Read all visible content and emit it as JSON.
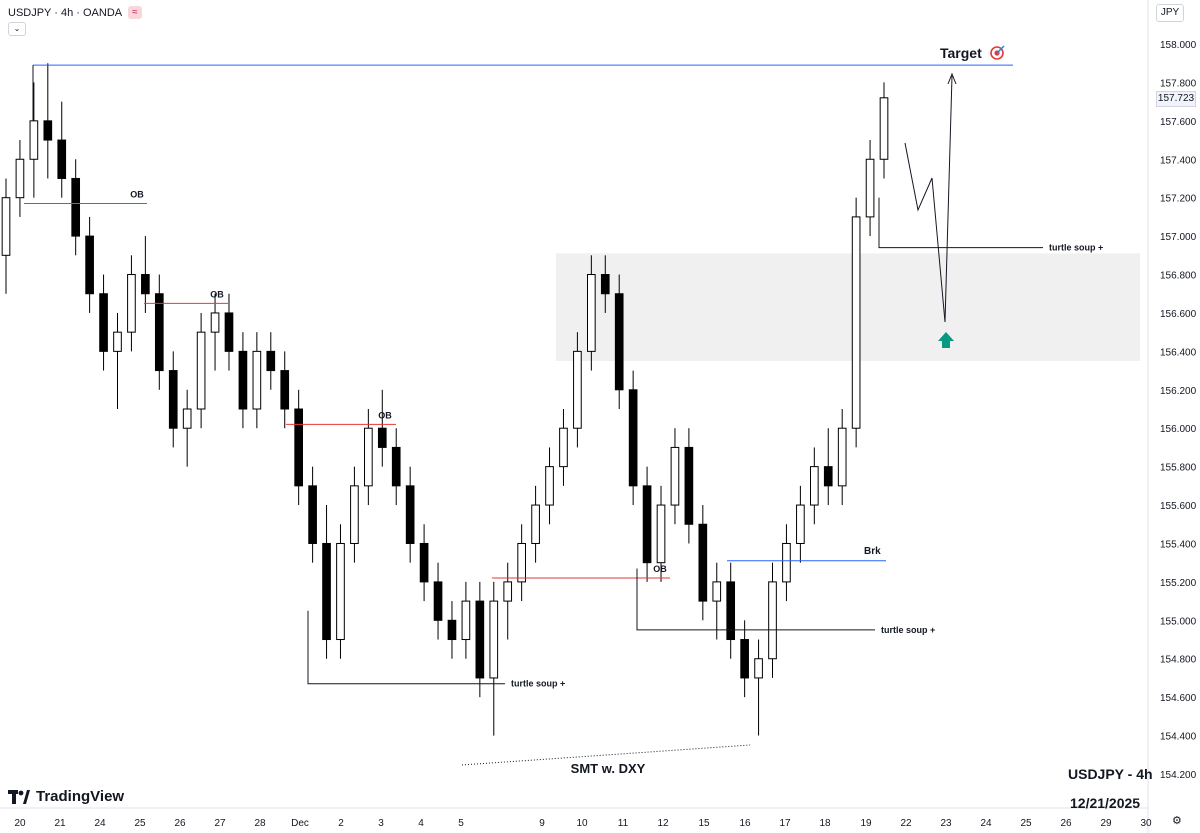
{
  "header": {
    "title": "USDJPY · 4h · OANDA",
    "indicator_icon": "indicator-toggle-icon",
    "badge": "≈"
  },
  "currency_button": "JPY",
  "last_price": "157.723",
  "branding": {
    "logo_text": "TradingView"
  },
  "footer": {
    "symbol": "USDJPY - 4h",
    "date": "12/21/2025"
  },
  "colors": {
    "bull_body": "#ffffff",
    "bear_body": "#000000",
    "ob_line": "#e53935",
    "target_line": "#2962ff",
    "brk_line": "#2962ff",
    "zone": "#f0f0f0",
    "arrow": "#089981"
  },
  "chart_data": {
    "type": "candlestick",
    "timeframe": "4h",
    "y_axis": {
      "ticks": [
        "158.000",
        "157.800",
        "157.600",
        "157.400",
        "157.200",
        "157.000",
        "156.800",
        "156.600",
        "156.400",
        "156.200",
        "156.000",
        "155.800",
        "155.600",
        "155.400",
        "155.200",
        "155.000",
        "154.800",
        "154.600",
        "154.400",
        "154.200"
      ],
      "range": [
        154.2,
        158.0
      ]
    },
    "x_axis": {
      "ticks": [
        "20",
        "21",
        "24",
        "25",
        "26",
        "27",
        "28",
        "Dec",
        "2",
        "3",
        "4",
        "5",
        "9",
        "10",
        "11",
        "12",
        "15",
        "16",
        "17",
        "18",
        "19",
        "22",
        "23",
        "24",
        "25",
        "26",
        "29",
        "30"
      ]
    },
    "series": [
      {
        "values": [
          [
            156.9,
            157.3,
            156.7,
            157.2
          ],
          [
            157.2,
            157.5,
            157.1,
            157.4
          ],
          [
            157.4,
            157.8,
            157.2,
            157.6
          ],
          [
            157.6,
            157.9,
            157.3,
            157.5
          ],
          [
            157.5,
            157.7,
            157.2,
            157.3
          ],
          [
            157.3,
            157.4,
            156.9,
            157.0
          ],
          [
            157.0,
            157.1,
            156.6,
            156.7
          ],
          [
            156.7,
            156.8,
            156.3,
            156.4
          ],
          [
            156.4,
            156.6,
            156.1,
            156.5
          ],
          [
            156.5,
            156.9,
            156.4,
            156.8
          ],
          [
            156.8,
            157.0,
            156.6,
            156.7
          ],
          [
            156.7,
            156.8,
            156.2,
            156.3
          ],
          [
            156.3,
            156.4,
            155.9,
            156.0
          ],
          [
            156.0,
            156.2,
            155.8,
            156.1
          ],
          [
            156.1,
            156.6,
            156.0,
            156.5
          ],
          [
            156.5,
            156.7,
            156.3,
            156.6
          ],
          [
            156.6,
            156.7,
            156.3,
            156.4
          ],
          [
            156.4,
            156.5,
            156.0,
            156.1
          ],
          [
            156.1,
            156.5,
            156.0,
            156.4
          ],
          [
            156.4,
            156.5,
            156.2,
            156.3
          ],
          [
            156.3,
            156.4,
            156.0,
            156.1
          ],
          [
            156.1,
            156.2,
            155.6,
            155.7
          ],
          [
            155.7,
            155.8,
            155.3,
            155.4
          ],
          [
            155.4,
            155.6,
            154.8,
            154.9
          ],
          [
            154.9,
            155.5,
            154.8,
            155.4
          ],
          [
            155.4,
            155.8,
            155.3,
            155.7
          ],
          [
            155.7,
            156.1,
            155.6,
            156.0
          ],
          [
            156.0,
            156.2,
            155.8,
            155.9
          ],
          [
            155.9,
            156.0,
            155.6,
            155.7
          ],
          [
            155.7,
            155.8,
            155.3,
            155.4
          ],
          [
            155.4,
            155.5,
            155.1,
            155.2
          ],
          [
            155.2,
            155.3,
            154.9,
            155.0
          ],
          [
            155.0,
            155.1,
            154.8,
            154.9
          ],
          [
            154.9,
            155.2,
            154.8,
            155.1
          ],
          [
            155.1,
            155.2,
            154.6,
            154.7
          ],
          [
            154.7,
            155.2,
            154.4,
            155.1
          ],
          [
            155.1,
            155.3,
            154.9,
            155.2
          ],
          [
            155.2,
            155.5,
            155.1,
            155.4
          ],
          [
            155.4,
            155.7,
            155.3,
            155.6
          ],
          [
            155.6,
            155.9,
            155.5,
            155.8
          ],
          [
            155.8,
            156.1,
            155.7,
            156.0
          ],
          [
            156.0,
            156.5,
            155.9,
            156.4
          ],
          [
            156.4,
            156.9,
            156.3,
            156.8
          ],
          [
            156.8,
            156.9,
            156.6,
            156.7
          ],
          [
            156.7,
            156.8,
            156.1,
            156.2
          ],
          [
            156.2,
            156.3,
            155.6,
            155.7
          ],
          [
            155.7,
            155.8,
            155.2,
            155.3
          ],
          [
            155.3,
            155.7,
            155.2,
            155.6
          ],
          [
            155.6,
            156.0,
            155.5,
            155.9
          ],
          [
            155.9,
            156.0,
            155.4,
            155.5
          ],
          [
            155.5,
            155.6,
            155.0,
            155.1
          ],
          [
            155.1,
            155.3,
            154.9,
            155.2
          ],
          [
            155.2,
            155.3,
            154.8,
            154.9
          ],
          [
            154.9,
            155.0,
            154.6,
            154.7
          ],
          [
            154.7,
            154.9,
            154.4,
            154.8
          ],
          [
            154.8,
            155.3,
            154.7,
            155.2
          ],
          [
            155.2,
            155.5,
            155.1,
            155.4
          ],
          [
            155.4,
            155.7,
            155.3,
            155.6
          ],
          [
            155.6,
            155.9,
            155.5,
            155.8
          ],
          [
            155.8,
            156.0,
            155.6,
            155.7
          ],
          [
            155.7,
            156.1,
            155.6,
            156.0
          ],
          [
            156.0,
            157.2,
            155.9,
            157.1
          ],
          [
            157.1,
            157.5,
            157.0,
            157.4
          ],
          [
            157.4,
            157.8,
            157.3,
            157.72
          ]
        ]
      }
    ],
    "annotations": [
      {
        "text": "OB",
        "price": 157.17
      },
      {
        "text": "OB",
        "price": 156.65
      },
      {
        "text": "OB",
        "price": 156.02
      },
      {
        "text": "OB",
        "price": 155.22
      },
      {
        "text": "turtle soup +",
        "price": 154.67
      },
      {
        "text": "turtle soup +",
        "price": 154.95
      },
      {
        "text": "turtle soup +",
        "price": 156.94
      },
      {
        "text": "Brk",
        "price": 155.31
      },
      {
        "text": "Target",
        "price": 157.89
      },
      {
        "text": "SMT w. DXY"
      }
    ],
    "zone": {
      "low": 156.35,
      "high": 156.91
    }
  }
}
